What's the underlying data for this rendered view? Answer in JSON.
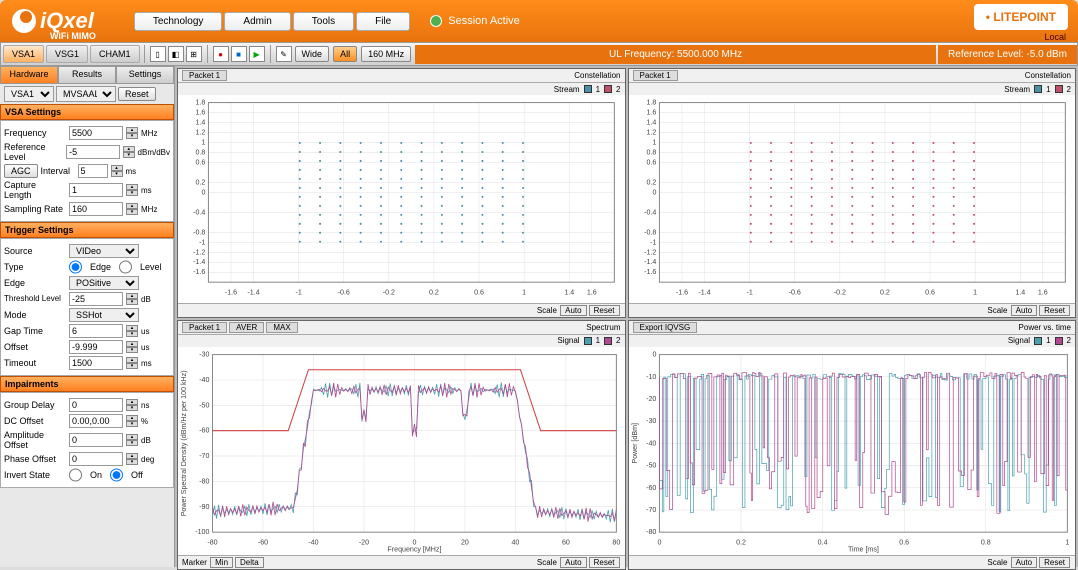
{
  "header": {
    "logo": "iQxel",
    "subtitle": "WiFi MIMO",
    "menu": [
      "Technology",
      "Admin",
      "Tools",
      "File"
    ],
    "session": "Session Active",
    "brand": "LITEPOINT",
    "login": "Local"
  },
  "toolbar": {
    "tabs": [
      "VSA1",
      "VSG1",
      "CHAM1"
    ],
    "btns": {
      "wide": "Wide",
      "all": "All",
      "mhz": "160 MHz"
    },
    "ul_freq": "UL Frequency: 5500.000 MHz",
    "ref_level": "Reference Level: -5.0 dBm"
  },
  "sidebar": {
    "tabs": [
      "Hardware",
      "Results",
      "Settings"
    ],
    "top_sel1": "VSA1",
    "top_sel2": "MVSAALL",
    "reset": "Reset",
    "vsa": {
      "title": "VSA Settings",
      "freq_lbl": "Frequency",
      "freq_val": "5500",
      "freq_unit": "MHz",
      "ref_lbl": "Reference Level",
      "ref_val": "-5",
      "ref_unit": "dBm/dBv",
      "agc_lbl": "AGC",
      "int_lbl": "Interval",
      "int_val": "5",
      "int_unit": "ms",
      "cap_lbl": "Capture Length",
      "cap_val": "1",
      "cap_unit": "ms",
      "samp_lbl": "Sampling Rate",
      "samp_val": "160",
      "samp_unit": "MHz"
    },
    "trigger": {
      "title": "Trigger Settings",
      "src_lbl": "Source",
      "src_val": "VIDeo",
      "type_lbl": "Type",
      "type_edge": "Edge",
      "type_level": "Level",
      "edge_lbl": "Edge",
      "edge_val": "POSitive",
      "thr_lbl": "Threshold Level",
      "thr_val": "-25",
      "thr_unit": "dB",
      "mode_lbl": "Mode",
      "mode_val": "SSHot",
      "gap_lbl": "Gap Time",
      "gap_val": "6",
      "gap_unit": "us",
      "off_lbl": "Offset",
      "off_val": "-9.999",
      "off_unit": "us",
      "to_lbl": "Timeout",
      "to_val": "1500",
      "to_unit": "ms"
    },
    "impair": {
      "title": "Impairments",
      "gd_lbl": "Group Delay",
      "gd_val": "0",
      "gd_unit": "ns",
      "dc_lbl": "DC Offset",
      "dc_val": "0.00,0.00",
      "dc_unit": "%",
      "amp_lbl": "Amplitude Offset",
      "amp_val": "0",
      "amp_unit": "dB",
      "ph_lbl": "Phase Offset",
      "ph_val": "0",
      "ph_unit": "deg",
      "inv_lbl": "Invert State",
      "inv_on": "On",
      "inv_off": "Off"
    }
  },
  "charts": {
    "c1": {
      "tab": "Packet 1",
      "title": "Constellation",
      "stream": "Stream",
      "type": "constellation",
      "xlim": [
        -1.8,
        1.8
      ],
      "ylim": [
        -1.8,
        1.8
      ],
      "xticks": [
        -1.6,
        -1.4,
        -1,
        -0.6,
        -0.2,
        0.2,
        0.6,
        1,
        1.4,
        1.6
      ],
      "yticks": [
        -1.6,
        -1.4,
        -1.2,
        -1,
        -0.8,
        -0.4,
        0,
        0.2,
        0.6,
        0.8,
        1,
        1.2,
        1.4,
        1.6,
        1.8
      ],
      "grid_n": 12,
      "grid_spacing": 0.18,
      "color": "#4a90a8",
      "legends": [
        "1",
        "2"
      ],
      "ftr_l": "Scale",
      "ftr_btns": [
        "Auto",
        "Reset"
      ]
    },
    "c2": {
      "tab": "Packet 1",
      "title": "Constellation",
      "stream": "Stream",
      "type": "constellation",
      "xlim": [
        -1.8,
        1.8
      ],
      "ylim": [
        -1.8,
        1.8
      ],
      "xticks": [
        -1.6,
        -1.4,
        -1,
        -0.6,
        -0.2,
        0.2,
        0.6,
        1,
        1.4,
        1.6
      ],
      "yticks": [
        -1.6,
        -1.4,
        -1.2,
        -1,
        -0.8,
        -0.4,
        0,
        0.2,
        0.6,
        0.8,
        1,
        1.2,
        1.4,
        1.6,
        1.8
      ],
      "grid_n": 12,
      "grid_spacing": 0.18,
      "color": "#c0506a",
      "legends": [
        "1",
        "2"
      ],
      "ftr_l": "Scale",
      "ftr_btns": [
        "Auto",
        "Reset"
      ]
    },
    "c3": {
      "tabs": [
        "Packet 1",
        "AVER",
        "MAX"
      ],
      "title": "Spectrum",
      "signal": "Signal",
      "type": "spectrum",
      "xlim": [
        -80,
        80
      ],
      "ylim": [
        -100,
        -30
      ],
      "xticks": [
        -80,
        -60,
        -40,
        -20,
        0,
        20,
        40,
        60,
        80
      ],
      "yticks": [
        -100,
        -90,
        -80,
        -70,
        -60,
        -50,
        -40,
        -30
      ],
      "xlabel": "Frequency [MHz]",
      "ylabel": "Power Spectral Density (dBm/Hz per 100 kHz)",
      "colors": [
        "#4aa0b0",
        "#b04a90"
      ],
      "mask_color": "#d04040",
      "plateau_y": -44,
      "floor_y": -92,
      "notch_y": -60,
      "edge1": -40,
      "edge2": 40,
      "legends": [
        "1",
        "2"
      ],
      "ftr_l_lbl": "Marker",
      "ftr_l_btns": [
        "Min",
        "Delta"
      ],
      "ftr_r_lbl": "Scale",
      "ftr_r_btns": [
        "Auto",
        "Reset"
      ]
    },
    "c4": {
      "tab": "Export IQVSG",
      "title": "Power vs. time",
      "signal": "Signal",
      "type": "power_time",
      "xlim": [
        0,
        1
      ],
      "ylim": [
        -80,
        0
      ],
      "xticks": [
        0,
        0.2,
        0.4,
        0.6,
        0.8,
        1
      ],
      "yticks": [
        -80,
        -70,
        -60,
        -50,
        -40,
        -30,
        -20,
        -10,
        0
      ],
      "xlabel": "Time [ms]",
      "ylabel": "Power [dBm]",
      "colors": [
        "#4aa0b0",
        "#b04a90"
      ],
      "top_y": -10,
      "drop_y": -72,
      "legends": [
        "1",
        "2"
      ],
      "ftr_r_lbl": "Scale",
      "ftr_r_btns": [
        "Auto",
        "Reset"
      ]
    }
  }
}
